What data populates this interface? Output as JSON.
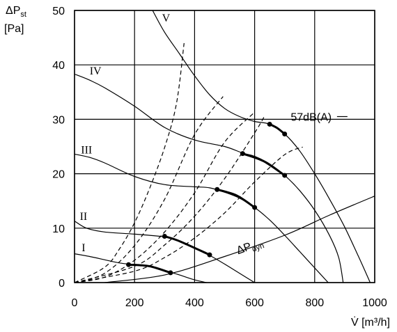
{
  "chart_data": {
    "type": "line",
    "ylabel": {
      "symbol": "ΔP",
      "sub": "st",
      "unit": "[Pa]"
    },
    "xlabel": "V̇ [m³/h]",
    "xlim": [
      0,
      1000
    ],
    "ylim": [
      0,
      50
    ],
    "xticks": [
      0,
      200,
      400,
      600,
      800,
      1000
    ],
    "yticks": [
      0,
      10,
      20,
      30,
      40,
      50
    ],
    "xtick_labels": [
      "0",
      "200",
      "400",
      "600",
      "800",
      "1000"
    ],
    "ytick_labels": [
      "0",
      "10",
      "20",
      "30",
      "40",
      "50"
    ],
    "grid": true,
    "fan_curves": [
      {
        "label": "I",
        "points": [
          [
            0,
            5.3
          ],
          [
            50,
            4.8
          ],
          [
            100,
            4.2
          ],
          [
            150,
            3.6
          ],
          [
            200,
            3.3
          ],
          [
            250,
            3
          ],
          [
            300,
            2.2
          ],
          [
            350,
            1.4
          ],
          [
            400,
            0.5
          ],
          [
            440,
            0
          ]
        ],
        "label_at": [
          30,
          6.5
        ]
      },
      {
        "label": "II",
        "points": [
          [
            0,
            11.3
          ],
          [
            40,
            10
          ],
          [
            100,
            9.3
          ],
          [
            200,
            8.9
          ],
          [
            300,
            8.4
          ],
          [
            350,
            7.6
          ],
          [
            400,
            6.4
          ],
          [
            450,
            5
          ],
          [
            500,
            3.4
          ],
          [
            550,
            1.7
          ],
          [
            600,
            0
          ]
        ],
        "label_at": [
          30,
          12.3
        ]
      },
      {
        "label": "III",
        "points": [
          [
            0,
            23.6
          ],
          [
            50,
            23
          ],
          [
            100,
            22
          ],
          [
            200,
            19.5
          ],
          [
            300,
            18
          ],
          [
            400,
            17.6
          ],
          [
            450,
            17.4
          ],
          [
            500,
            16.6
          ],
          [
            550,
            15.5
          ],
          [
            600,
            13.8
          ],
          [
            650,
            11.5
          ],
          [
            700,
            8.7
          ],
          [
            750,
            5.7
          ],
          [
            800,
            2.7
          ],
          [
            845,
            0
          ]
        ],
        "label_at": [
          40,
          24.5
        ]
      },
      {
        "label": "IV",
        "points": [
          [
            0,
            38.3
          ],
          [
            50,
            37.2
          ],
          [
            100,
            35.8
          ],
          [
            200,
            32.4
          ],
          [
            300,
            28.5
          ],
          [
            400,
            26.2
          ],
          [
            500,
            25
          ],
          [
            560,
            23.8
          ],
          [
            600,
            23.2
          ],
          [
            650,
            21.8
          ],
          [
            700,
            19.7
          ],
          [
            750,
            16.9
          ],
          [
            800,
            13.3
          ],
          [
            850,
            8.6
          ],
          [
            880,
            4.6
          ],
          [
            895,
            0
          ]
        ],
        "label_at": [
          70,
          39
        ]
      },
      {
        "label": "V",
        "points": [
          [
            260,
            50
          ],
          [
            300,
            46
          ],
          [
            350,
            42
          ],
          [
            400,
            38
          ],
          [
            450,
            34.5
          ],
          [
            500,
            32
          ],
          [
            550,
            30.5
          ],
          [
            600,
            29.6
          ],
          [
            650,
            29.1
          ],
          [
            700,
            27.3
          ],
          [
            750,
            24.2
          ],
          [
            800,
            20
          ],
          [
            850,
            15.3
          ],
          [
            900,
            10.2
          ],
          [
            950,
            4.3
          ],
          [
            985,
            0
          ]
        ],
        "label_at": [
          305,
          48.7
        ]
      }
    ],
    "system_curves": [
      {
        "points": [
          [
            0,
            0
          ],
          [
            100,
            2.8
          ],
          [
            150,
            6.2
          ],
          [
            200,
            11
          ],
          [
            250,
            17.3
          ],
          [
            300,
            24.8
          ],
          [
            340,
            33
          ],
          [
            365,
            44
          ]
        ]
      },
      {
        "points": [
          [
            0,
            0
          ],
          [
            100,
            1.7
          ],
          [
            200,
            6.8
          ],
          [
            300,
            15.3
          ],
          [
            400,
            27.2
          ],
          [
            495,
            34.2
          ]
        ]
      },
      {
        "points": [
          [
            0,
            0
          ],
          [
            100,
            1
          ],
          [
            200,
            4.1
          ],
          [
            300,
            9.3
          ],
          [
            400,
            16.5
          ],
          [
            500,
            25.8
          ],
          [
            600,
            31.3
          ]
        ]
      },
      {
        "points": [
          [
            0,
            0
          ],
          [
            200,
            3
          ],
          [
            300,
            6.9
          ],
          [
            400,
            12.2
          ],
          [
            500,
            19.1
          ],
          [
            600,
            27.5
          ],
          [
            635,
            30.8
          ]
        ]
      },
      {
        "points": [
          [
            0,
            0
          ],
          [
            200,
            2.1
          ],
          [
            300,
            4.6
          ],
          [
            400,
            8.2
          ],
          [
            500,
            12.8
          ],
          [
            600,
            18.5
          ],
          [
            700,
            23.5
          ],
          [
            760,
            24.9
          ]
        ]
      }
    ],
    "dynamic_pressure_curve": {
      "label": {
        "symbol": "ΔP",
        "sub": "dyn"
      },
      "points": [
        [
          100,
          0
        ],
        [
          300,
          1.4
        ],
        [
          500,
          4.8
        ],
        [
          700,
          8.7
        ],
        [
          850,
          12.4
        ],
        [
          1000,
          15.9
        ]
      ],
      "label_at": [
        545,
        5.2
      ]
    },
    "operating_ranges": [
      {
        "start": [
          180,
          3.3
        ],
        "end": [
          320,
          1.8
        ],
        "mid": [
          250,
          3
        ]
      },
      {
        "start": [
          300,
          8.5
        ],
        "end": [
          450,
          5.1
        ],
        "mid": [
          350,
          7.6
        ]
      },
      {
        "start": [
          475,
          17.1
        ],
        "end": [
          600,
          13.8
        ],
        "mid": [
          540,
          16
        ]
      },
      {
        "start": [
          560,
          23.7
        ],
        "end": [
          700,
          19.7
        ],
        "mid": [
          630,
          22.3
        ]
      },
      {
        "start": [
          650,
          29.1
        ],
        "end": [
          700,
          27.3
        ],
        "mid": [
          675,
          28.4
        ]
      }
    ],
    "annotation": {
      "text": "57dB(A)",
      "at": [
        690,
        30.5
      ],
      "line_from": [
        712,
        30.5
      ],
      "line_to": [
        770,
        30.5
      ]
    }
  }
}
